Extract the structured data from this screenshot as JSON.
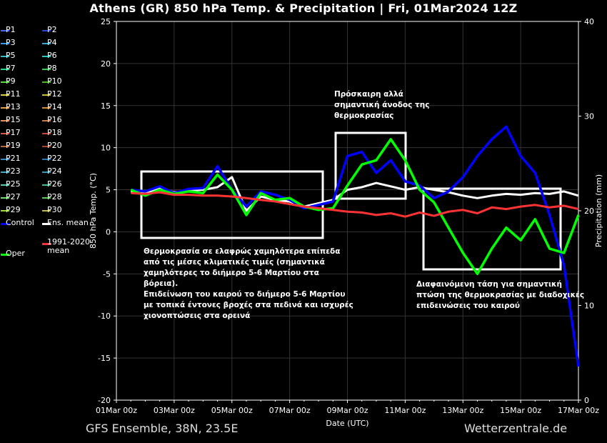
{
  "header": {
    "title": "Athens  (GR)  850 hPa Temp. & Precipitation | Fri, 01Mar2024 12Z"
  },
  "footer": {
    "left": "GFS Ensemble, 38N, 23.5E",
    "right": "Wetterzentrale.de"
  },
  "legend": {
    "items": [
      {
        "label": "P1",
        "color": "#4466ff"
      },
      {
        "label": "P2",
        "color": "#2244dd"
      },
      {
        "label": "P3",
        "color": "#3399ff"
      },
      {
        "label": "P4",
        "color": "#33aadd"
      },
      {
        "label": "P5",
        "color": "#33bbcc"
      },
      {
        "label": "P6",
        "color": "#22ccbb"
      },
      {
        "label": "P7",
        "color": "#22dd88"
      },
      {
        "label": "P8",
        "color": "#33cc55"
      },
      {
        "label": "P9",
        "color": "#55dd33"
      },
      {
        "label": "P10",
        "color": "#44bb22"
      },
      {
        "label": "P11",
        "color": "#ddcc44"
      },
      {
        "label": "P12",
        "color": "#ccbb33"
      },
      {
        "label": "P13",
        "color": "#ee9944"
      },
      {
        "label": "P14",
        "color": "#dd8833"
      },
      {
        "label": "P15",
        "color": "#ee8855"
      },
      {
        "label": "P16",
        "color": "#cc7744"
      },
      {
        "label": "P17",
        "color": "#dd5544"
      },
      {
        "label": "P18",
        "color": "#cc4433"
      },
      {
        "label": "P19",
        "color": "#bb6633"
      },
      {
        "label": "P20",
        "color": "#aa4422"
      },
      {
        "label": "P21",
        "color": "#3388cc"
      },
      {
        "label": "P22",
        "color": "#2277bb"
      },
      {
        "label": "P23",
        "color": "#44aacc"
      },
      {
        "label": "P24",
        "color": "#3399bb"
      },
      {
        "label": "P25",
        "color": "#55ccaa"
      },
      {
        "label": "P26",
        "color": "#44bb99"
      },
      {
        "label": "P27",
        "color": "#66dd66"
      },
      {
        "label": "P28",
        "color": "#55cc55"
      },
      {
        "label": "P29",
        "color": "#99dd33"
      },
      {
        "label": "P30",
        "color": "#bbbb55"
      }
    ],
    "control": {
      "label": "Control",
      "color": "#0000ff"
    },
    "ens_mean": {
      "label": "Ens. mean",
      "color": "#ffffff"
    },
    "clim_mean": {
      "label": "1991-2020 mean",
      "color": "#ff3333"
    },
    "oper": {
      "label": "Oper",
      "color": "#00ff00"
    }
  },
  "annotations": [
    {
      "text": "Θερμοκρασία σε ελαφρώς χαμηλότερα επίπεδα\nαπό τις μέσες κλιματικές τιμές (σημαντικά\nχαμηλότερες το διήμερο 5-6 Μαρτίου στα\nβόρεια).\nΕπιδείνωση του καιρού το διήμερο 5-6 Μαρτίου\nμε τοπικά έντονες βροχές στα πεδινά και ισχυρές\nχιονοπτώσεις στα ορεινά"
    },
    {
      "text": "Πρόσκαιρη αλλά\nσημαντική άνοδος της\nθερμοκρασίας"
    },
    {
      "text": "Διαφαινόμενη τάση για σημαντική\nπτώση της θερμοκρασίας με διαδοχικές\nεπιδεινώσεις του καιρού"
    }
  ],
  "chart_data": {
    "type": "line",
    "xlabel": "Date (UTC)",
    "ylabel": "850 hPa Temp. (°C)",
    "y2label": "Precipitation (mm)",
    "ylim": [
      -20,
      25
    ],
    "y2lim": [
      0,
      40
    ],
    "yticks": [
      -20,
      -15,
      -10,
      -5,
      0,
      5,
      10,
      15,
      20,
      25
    ],
    "y2ticks": [
      0,
      10,
      20,
      30,
      40
    ],
    "xlim": [
      0,
      16
    ],
    "xticks": [
      {
        "day": 0,
        "label": "01Mar 00z"
      },
      {
        "day": 2,
        "label": "03Mar 00z"
      },
      {
        "day": 4,
        "label": "05Mar 00z"
      },
      {
        "day": 6,
        "label": "07Mar 00z"
      },
      {
        "day": 8,
        "label": "09Mar 00z"
      },
      {
        "day": 10,
        "label": "11Mar 00z"
      },
      {
        "day": 12,
        "label": "13Mar 00z"
      },
      {
        "day": 14,
        "label": "15Mar 00z"
      },
      {
        "day": 16,
        "label": "17Mar 00z"
      }
    ],
    "series": [
      {
        "name": "Ens. mean",
        "color": "#ffffff",
        "x": [
          0.5,
          1,
          1.5,
          2,
          2.5,
          3,
          3.5,
          4,
          4.5,
          5,
          5.5,
          6,
          6.5,
          7,
          7.5,
          8,
          8.5,
          9,
          9.5,
          10,
          10.5,
          11,
          11.5,
          12,
          12.5,
          13,
          13.5,
          14,
          14.5,
          15,
          15.5,
          16
        ],
        "y": [
          4.8,
          4.6,
          5.2,
          4.7,
          4.9,
          5.0,
          5.3,
          6.5,
          2.5,
          4.2,
          3.8,
          3.6,
          3.0,
          3.4,
          3.8,
          5.0,
          5.3,
          5.8,
          5.4,
          5.0,
          5.3,
          5.0,
          4.7,
          4.3,
          4.0,
          4.3,
          4.5,
          4.4,
          4.6,
          4.5,
          4.8,
          4.3
        ]
      },
      {
        "name": "Control",
        "color": "#0000ff",
        "x": [
          0.5,
          1,
          1.5,
          2,
          2.5,
          3,
          3.5,
          4,
          4.5,
          5,
          5.5,
          6,
          6.5,
          7,
          7.5,
          8,
          8.5,
          9,
          9.5,
          10,
          10.5,
          11,
          11.5,
          12,
          12.5,
          13,
          13.5,
          14,
          14.5,
          15,
          15.5,
          16
        ],
        "y": [
          5.0,
          4.8,
          5.4,
          4.6,
          5.1,
          5.2,
          7.8,
          5.0,
          3.0,
          4.8,
          4.4,
          3.8,
          2.8,
          3.2,
          3.6,
          9.0,
          9.5,
          7.0,
          8.5,
          6.0,
          5.5,
          4.0,
          4.8,
          6.5,
          9.0,
          11.0,
          12.5,
          9.0,
          7.0,
          2.0,
          -4.0,
          -16.0
        ]
      },
      {
        "name": "Oper",
        "color": "#00ff00",
        "x": [
          0.5,
          1,
          1.5,
          2,
          2.5,
          3,
          3.5,
          4,
          4.5,
          5,
          5.5,
          6,
          6.5,
          7,
          7.5,
          8,
          8.5,
          9,
          9.5,
          10,
          10.5,
          11,
          11.5,
          12,
          12.5,
          13,
          13.5,
          14,
          14.5,
          15,
          15.5,
          16
        ],
        "y": [
          5.0,
          4.3,
          5.0,
          4.5,
          4.8,
          4.6,
          6.8,
          5.0,
          2.0,
          4.6,
          3.8,
          4.0,
          3.0,
          2.6,
          2.8,
          5.5,
          8.0,
          8.5,
          11.0,
          8.5,
          5.0,
          3.5,
          0.5,
          -2.5,
          -5.0,
          -2.0,
          0.5,
          -1.0,
          1.5,
          -2.0,
          -2.5,
          2.0
        ]
      },
      {
        "name": "1991-2020 mean",
        "color": "#ff3333",
        "x": [
          0.5,
          1,
          1.5,
          2,
          2.5,
          3,
          3.5,
          4,
          4.5,
          5,
          5.5,
          6,
          6.5,
          7,
          7.5,
          8,
          8.5,
          9,
          9.5,
          10,
          10.5,
          11,
          11.5,
          12,
          12.5,
          13,
          13.5,
          14,
          14.5,
          15,
          15.5,
          16
        ],
        "y": [
          4.6,
          4.5,
          4.7,
          4.4,
          4.4,
          4.3,
          4.3,
          4.2,
          4.0,
          3.8,
          3.6,
          3.3,
          3.0,
          2.8,
          2.6,
          2.4,
          2.3,
          2.0,
          2.2,
          1.8,
          2.3,
          1.9,
          2.4,
          2.6,
          2.2,
          2.9,
          2.7,
          3.0,
          3.2,
          2.9,
          3.1,
          2.7
        ]
      }
    ]
  }
}
